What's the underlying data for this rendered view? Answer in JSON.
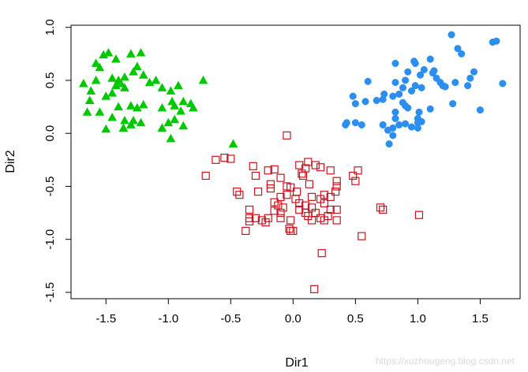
{
  "chart_data": {
    "type": "scatter",
    "xlabel": "Dir1",
    "ylabel": "Dir2",
    "xlim": [
      -1.78,
      1.82
    ],
    "ylim": [
      -1.56,
      1.02
    ],
    "xticks": [
      "-1.5",
      "-1.0",
      "-0.5",
      "0.0",
      "0.5",
      "1.0",
      "1.5"
    ],
    "xtick_values": [
      -1.5,
      -1.0,
      -0.5,
      0.0,
      0.5,
      1.0,
      1.5
    ],
    "yticks": [
      "-1.5",
      "-1.0",
      "-0.5",
      "0.0",
      "0.5",
      "1.0"
    ],
    "ytick_values": [
      -1.5,
      -1.0,
      -0.5,
      0.0,
      0.5,
      1.0
    ],
    "grid": false,
    "legend": "none",
    "series": [
      {
        "marker": "triangle",
        "color": "#00c800",
        "points": [
          [
            -1.58,
            0.66
          ],
          [
            -1.55,
            0.62
          ],
          [
            -1.52,
            0.74
          ],
          [
            -1.48,
            0.76
          ],
          [
            -1.42,
            0.7
          ],
          [
            -1.3,
            0.75
          ],
          [
            -1.22,
            0.76
          ],
          [
            -1.25,
            0.63
          ],
          [
            -1.68,
            0.47
          ],
          [
            -1.58,
            0.5
          ],
          [
            -1.62,
            0.4
          ],
          [
            -1.45,
            0.52
          ],
          [
            -1.4,
            0.5
          ],
          [
            -1.38,
            0.47
          ],
          [
            -1.35,
            0.53
          ],
          [
            -1.42,
            0.45
          ],
          [
            -1.45,
            0.38
          ],
          [
            -1.5,
            0.35
          ],
          [
            -1.28,
            0.58
          ],
          [
            -1.2,
            0.55
          ],
          [
            -1.1,
            0.5
          ],
          [
            -1.05,
            0.43
          ],
          [
            -0.98,
            0.4
          ],
          [
            -0.92,
            0.45
          ],
          [
            -1.15,
            0.48
          ],
          [
            -0.72,
            0.5
          ],
          [
            -1.35,
            0.43
          ],
          [
            -1.63,
            0.31
          ],
          [
            -1.65,
            0.2
          ],
          [
            -1.55,
            0.2
          ],
          [
            -1.4,
            0.25
          ],
          [
            -1.3,
            0.26
          ],
          [
            -1.25,
            0.24
          ],
          [
            -1.2,
            0.27
          ],
          [
            -1.05,
            0.24
          ],
          [
            -0.97,
            0.3
          ],
          [
            -0.95,
            0.26
          ],
          [
            -0.88,
            0.3
          ],
          [
            -0.82,
            0.28
          ],
          [
            -0.9,
            0.21
          ],
          [
            -1.45,
            0.15
          ],
          [
            -1.35,
            0.12
          ],
          [
            -1.28,
            0.12
          ],
          [
            -1.22,
            0.1
          ],
          [
            -1.3,
            0.08
          ],
          [
            -1.5,
            0.04
          ],
          [
            -1.36,
            0.05
          ],
          [
            -1.05,
            0.05
          ],
          [
            -1.0,
            0.1
          ],
          [
            -0.95,
            0.13
          ],
          [
            -0.88,
            0.07
          ],
          [
            -0.8,
            0.24
          ],
          [
            -0.98,
            -0.05
          ],
          [
            -0.48,
            -0.1
          ]
        ]
      },
      {
        "marker": "circle",
        "color": "#2b8ef0",
        "points": [
          [
            1.27,
            0.93
          ],
          [
            1.6,
            0.86
          ],
          [
            1.63,
            0.87
          ],
          [
            1.32,
            0.8
          ],
          [
            1.35,
            0.75
          ],
          [
            0.82,
            0.66
          ],
          [
            0.97,
            0.68
          ],
          [
            0.98,
            0.66
          ],
          [
            1.1,
            0.7
          ],
          [
            1.12,
            0.57
          ],
          [
            1.05,
            0.6
          ],
          [
            1.02,
            0.55
          ],
          [
            1.13,
            0.59
          ],
          [
            1.15,
            0.52
          ],
          [
            0.92,
            0.58
          ],
          [
            1.45,
            0.58
          ],
          [
            1.42,
            0.52
          ],
          [
            1.2,
            0.45
          ],
          [
            1.18,
            0.48
          ],
          [
            1.22,
            0.44
          ],
          [
            1.68,
            0.47
          ],
          [
            1.4,
            0.45
          ],
          [
            1.3,
            0.48
          ],
          [
            0.6,
            0.49
          ],
          [
            0.82,
            0.48
          ],
          [
            0.9,
            0.5
          ],
          [
            0.98,
            0.45
          ],
          [
            1.03,
            0.43
          ],
          [
            0.88,
            0.43
          ],
          [
            0.95,
            0.4
          ],
          [
            0.73,
            0.37
          ],
          [
            0.8,
            0.35
          ],
          [
            0.85,
            0.37
          ],
          [
            0.67,
            0.31
          ],
          [
            0.72,
            0.32
          ],
          [
            0.88,
            0.29
          ],
          [
            0.48,
            0.35
          ],
          [
            0.5,
            0.28
          ],
          [
            0.58,
            0.3
          ],
          [
            1.28,
            0.28
          ],
          [
            0.9,
            0.26
          ],
          [
            0.92,
            0.24
          ],
          [
            1.01,
            0.2
          ],
          [
            1.1,
            0.23
          ],
          [
            1.0,
            0.14
          ],
          [
            1.5,
            0.22
          ],
          [
            0.82,
            0.14
          ],
          [
            0.43,
            0.1
          ],
          [
            0.42,
            0.08
          ],
          [
            0.55,
            0.08
          ],
          [
            0.72,
            0.08
          ],
          [
            0.85,
            0.08
          ],
          [
            0.95,
            0.06
          ],
          [
            0.9,
            0.09
          ],
          [
            0.8,
            0.05
          ],
          [
            1.0,
            0.1
          ],
          [
            0.76,
            0.03
          ],
          [
            0.8,
            -0.02
          ],
          [
            0.77,
            -0.1
          ],
          [
            1.0,
            0.05
          ],
          [
            1.03,
            0.11
          ],
          [
            0.5,
            0.1
          ],
          [
            0.82,
            0.2
          ]
        ]
      },
      {
        "marker": "square",
        "color": "#c8141e",
        "points": [
          [
            -0.05,
            -0.02
          ],
          [
            -0.55,
            -0.23
          ],
          [
            -0.5,
            -0.24
          ],
          [
            -0.62,
            -0.25
          ],
          [
            -0.32,
            -0.31
          ],
          [
            -0.2,
            -0.35
          ],
          [
            -0.15,
            -0.34
          ],
          [
            0.12,
            -0.27
          ],
          [
            0.05,
            -0.3
          ],
          [
            0.18,
            -0.3
          ],
          [
            0.22,
            -0.32
          ],
          [
            0.3,
            -0.35
          ],
          [
            0.1,
            -0.33
          ],
          [
            -0.7,
            -0.4
          ],
          [
            -0.3,
            -0.4
          ],
          [
            0.07,
            -0.38
          ],
          [
            0.08,
            -0.4
          ],
          [
            0.52,
            -0.35
          ],
          [
            0.48,
            -0.4
          ],
          [
            0.5,
            -0.45
          ],
          [
            0.35,
            -0.45
          ],
          [
            -0.1,
            -0.42
          ],
          [
            -0.18,
            -0.48
          ],
          [
            -0.18,
            -0.52
          ],
          [
            -0.05,
            -0.5
          ],
          [
            -0.02,
            -0.51
          ],
          [
            0.13,
            -0.48
          ],
          [
            0.03,
            -0.55
          ],
          [
            -0.45,
            -0.55
          ],
          [
            -0.43,
            -0.58
          ],
          [
            -0.28,
            -0.55
          ],
          [
            0.35,
            -0.5
          ],
          [
            0.34,
            -0.55
          ],
          [
            0.25,
            -0.58
          ],
          [
            0.22,
            -0.62
          ],
          [
            0.15,
            -0.6
          ],
          [
            -0.05,
            -0.58
          ],
          [
            -0.1,
            -0.6
          ],
          [
            0.02,
            -0.62
          ],
          [
            0.3,
            -0.6
          ],
          [
            -0.15,
            -0.65
          ],
          [
            -0.12,
            -0.68
          ],
          [
            -0.15,
            -0.73
          ],
          [
            -0.08,
            -0.7
          ],
          [
            0.05,
            -0.66
          ],
          [
            0.1,
            -0.68
          ],
          [
            0.15,
            -0.7
          ],
          [
            0.25,
            -0.66
          ],
          [
            -0.35,
            -0.72
          ],
          [
            -0.3,
            -0.8
          ],
          [
            -0.35,
            -0.8
          ],
          [
            -0.2,
            -0.8
          ],
          [
            -0.1,
            -0.75
          ],
          [
            0.05,
            -0.72
          ],
          [
            0.1,
            -0.75
          ],
          [
            0.18,
            -0.75
          ],
          [
            0.3,
            -0.72
          ],
          [
            0.35,
            -0.72
          ],
          [
            0.7,
            -0.7
          ],
          [
            0.72,
            -0.72
          ],
          [
            1.01,
            -0.77
          ],
          [
            -0.25,
            -0.82
          ],
          [
            -0.35,
            -0.83
          ],
          [
            -0.22,
            -0.84
          ],
          [
            -0.1,
            -0.8
          ],
          [
            -0.02,
            -0.82
          ],
          [
            0.15,
            -0.82
          ],
          [
            0.22,
            -0.8
          ],
          [
            0.25,
            -0.82
          ],
          [
            0.35,
            -0.82
          ],
          [
            0.12,
            -0.78
          ],
          [
            0.28,
            -0.78
          ],
          [
            -0.38,
            -0.92
          ],
          [
            -0.02,
            -0.92
          ],
          [
            0.0,
            -0.92
          ],
          [
            -0.03,
            -0.9
          ],
          [
            0.55,
            -0.97
          ],
          [
            0.23,
            -1.13
          ],
          [
            0.17,
            -1.47
          ]
        ]
      }
    ]
  },
  "watermark": "https://xuzhougeng.blog.csdn.net"
}
